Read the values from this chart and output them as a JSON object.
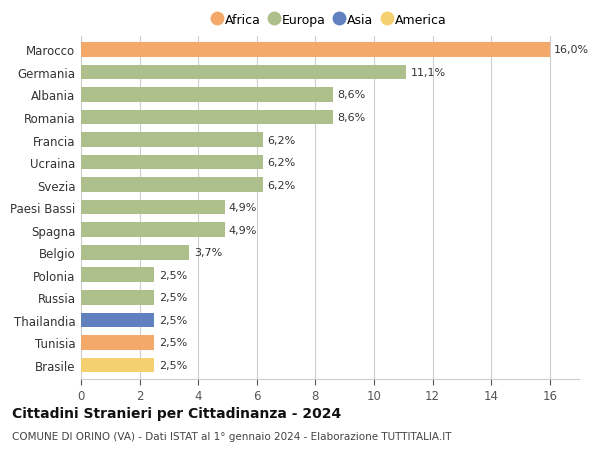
{
  "countries": [
    "Marocco",
    "Germania",
    "Albania",
    "Romania",
    "Francia",
    "Ucraina",
    "Svezia",
    "Paesi Bassi",
    "Spagna",
    "Belgio",
    "Polonia",
    "Russia",
    "Thailandia",
    "Tunisia",
    "Brasile"
  ],
  "values": [
    16.0,
    11.1,
    8.6,
    8.6,
    6.2,
    6.2,
    6.2,
    4.9,
    4.9,
    3.7,
    2.5,
    2.5,
    2.5,
    2.5,
    2.5
  ],
  "labels": [
    "16,0%",
    "11,1%",
    "8,6%",
    "8,6%",
    "6,2%",
    "6,2%",
    "6,2%",
    "4,9%",
    "4,9%",
    "3,7%",
    "2,5%",
    "2,5%",
    "2,5%",
    "2,5%",
    "2,5%"
  ],
  "continents": [
    "Africa",
    "Europa",
    "Europa",
    "Europa",
    "Europa",
    "Europa",
    "Europa",
    "Europa",
    "Europa",
    "Europa",
    "Europa",
    "Europa",
    "Asia",
    "Africa",
    "America"
  ],
  "colors": {
    "Africa": "#F4A96A",
    "Europa": "#ADBF8A",
    "Asia": "#6080C0",
    "America": "#F5D070"
  },
  "legend_order": [
    "Africa",
    "Europa",
    "Asia",
    "America"
  ],
  "title": "Cittadini Stranieri per Cittadinanza - 2024",
  "subtitle": "COMUNE DI ORINO (VA) - Dati ISTAT al 1° gennaio 2024 - Elaborazione TUTTITALIA.IT",
  "xlim": [
    0,
    17
  ],
  "xticks": [
    0,
    2,
    4,
    6,
    8,
    10,
    12,
    14,
    16
  ],
  "background_color": "#ffffff",
  "grid_color": "#cccccc",
  "bar_height": 0.65,
  "label_fontsize": 8,
  "ytick_fontsize": 8.5,
  "xtick_fontsize": 8.5,
  "legend_fontsize": 9,
  "title_fontsize": 10,
  "subtitle_fontsize": 7.5
}
